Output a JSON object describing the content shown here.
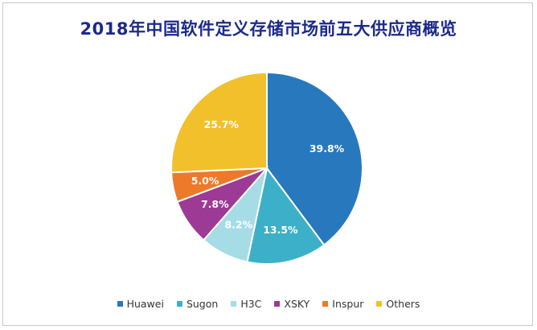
{
  "chart_data": {
    "type": "pie",
    "title": "2018年中国软件定义存储市场前五大供应商概览",
    "categories": [
      "Huawei",
      "Sugon",
      "H3C",
      "XSKY",
      "Inspur",
      "Others"
    ],
    "values": [
      39.8,
      13.5,
      8.2,
      7.8,
      5.0,
      25.7
    ],
    "labels": [
      "39.8%",
      "13.5%",
      "8.2%",
      "7.8%",
      "5.0%",
      "25.7%"
    ],
    "colors": [
      "#2878be",
      "#3cb0c8",
      "#a6dce6",
      "#9c3a96",
      "#ec7a2a",
      "#f2c02a"
    ],
    "legend_position": "bottom"
  }
}
